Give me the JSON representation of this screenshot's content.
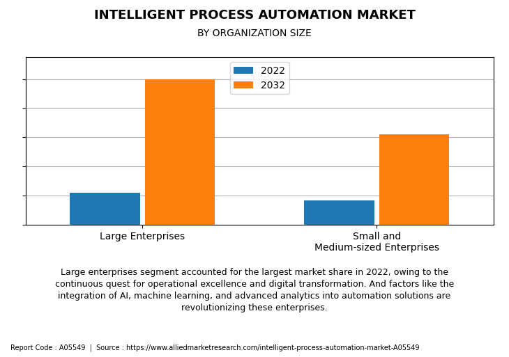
{
  "chart_data": {
    "type": "bar",
    "title": "INTELLIGENT PROCESS AUTOMATION MARKET",
    "subtitle": "BY ORGANIZATION SIZE",
    "categories": [
      "Large Enterprises",
      "Small and\nMedium-sized Enterprises"
    ],
    "series": [
      {
        "name": "2022",
        "values": [
          22,
          17
        ]
      },
      {
        "name": "2032",
        "values": [
          100,
          62
        ]
      }
    ],
    "ylim": [
      0,
      115
    ],
    "yticks": [
      0,
      20,
      40,
      60,
      80,
      100
    ],
    "grid": true,
    "tick_labels": "x",
    "legend": "upper center",
    "annotations": [
      "Large enterprises segment accounted for the largest market share in 2022, owing to the\ncontinuous quest for operational excellence and digital transformation. And factors like the\nintegration of AI, machine learning, and advanced analytics into automation solutions are\nrevolutionizing these enterprises.",
      "Report Code : A05549  |  Source : https://www.alliedmarketresearch.com/intelligent-process-automation-market-A05549"
    ]
  }
}
